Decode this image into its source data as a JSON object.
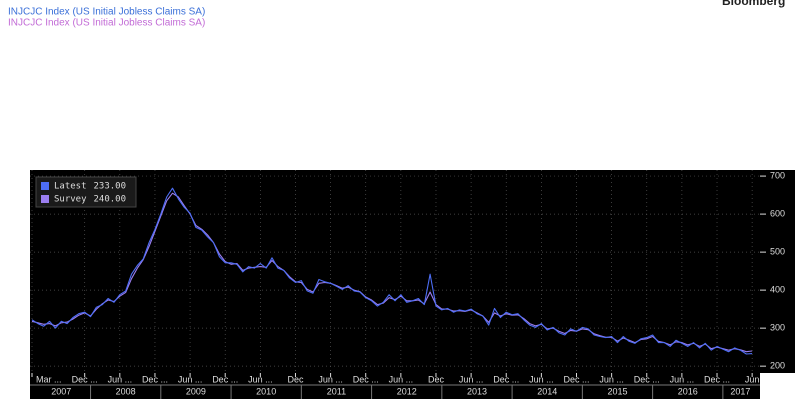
{
  "chart_data": {
    "type": "line",
    "title_lines": [
      {
        "text": "INJCJC Index (US Initial Jobless Claims SA)",
        "color": "#3a6fd8"
      },
      {
        "text": "INJCJC Index (US Initial Jobless Claims SA)",
        "color": "#c26bd6"
      }
    ],
    "source": "Bloomberg",
    "x": [
      "2007-03",
      "2007-04",
      "2007-05",
      "2007-06",
      "2007-07",
      "2007-08",
      "2007-09",
      "2007-10",
      "2007-11",
      "2007-12",
      "2008-01",
      "2008-02",
      "2008-03",
      "2008-04",
      "2008-05",
      "2008-06",
      "2008-07",
      "2008-08",
      "2008-09",
      "2008-10",
      "2008-11",
      "2008-12",
      "2009-01",
      "2009-02",
      "2009-03",
      "2009-04",
      "2009-05",
      "2009-06",
      "2009-07",
      "2009-08",
      "2009-09",
      "2009-10",
      "2009-11",
      "2009-12",
      "2010-01",
      "2010-02",
      "2010-03",
      "2010-04",
      "2010-05",
      "2010-06",
      "2010-07",
      "2010-08",
      "2010-09",
      "2010-10",
      "2010-11",
      "2010-12",
      "2011-01",
      "2011-02",
      "2011-03",
      "2011-04",
      "2011-05",
      "2011-06",
      "2011-07",
      "2011-08",
      "2011-09",
      "2011-10",
      "2011-11",
      "2011-12",
      "2012-01",
      "2012-02",
      "2012-03",
      "2012-04",
      "2012-05",
      "2012-06",
      "2012-07",
      "2012-08",
      "2012-09",
      "2012-10",
      "2012-11",
      "2012-12",
      "2013-01",
      "2013-02",
      "2013-03",
      "2013-04",
      "2013-05",
      "2013-06",
      "2013-07",
      "2013-08",
      "2013-09",
      "2013-10",
      "2013-11",
      "2013-12",
      "2014-01",
      "2014-02",
      "2014-03",
      "2014-04",
      "2014-05",
      "2014-06",
      "2014-07",
      "2014-08",
      "2014-09",
      "2014-10",
      "2014-11",
      "2014-12",
      "2015-01",
      "2015-02",
      "2015-03",
      "2015-04",
      "2015-05",
      "2015-06",
      "2015-07",
      "2015-08",
      "2015-09",
      "2015-10",
      "2015-11",
      "2015-12",
      "2016-01",
      "2016-02",
      "2016-03",
      "2016-04",
      "2016-05",
      "2016-06",
      "2016-07",
      "2016-08",
      "2016-09",
      "2016-10",
      "2016-11",
      "2016-12",
      "2017-01",
      "2017-02",
      "2017-03",
      "2017-04",
      "2017-05",
      "2017-06"
    ],
    "series": [
      {
        "name": "Latest",
        "color": "#4d6ef5",
        "last": {
          "value": 233,
          "label": "233.00"
        },
        "values": [
          322,
          312,
          305,
          318,
          300,
          318,
          312,
          328,
          338,
          342,
          330,
          355,
          362,
          378,
          368,
          388,
          398,
          442,
          465,
          482,
          525,
          560,
          600,
          645,
          668,
          640,
          618,
          602,
          565,
          558,
          540,
          525,
          488,
          472,
          472,
          468,
          448,
          462,
          458,
          470,
          458,
          485,
          458,
          452,
          432,
          420,
          425,
          398,
          392,
          428,
          422,
          418,
          410,
          402,
          412,
          398,
          395,
          380,
          372,
          358,
          368,
          388,
          372,
          388,
          368,
          372,
          378,
          362,
          442,
          358,
          348,
          352,
          342,
          348,
          345,
          350,
          338,
          332,
          308,
          352,
          328,
          342,
          335,
          338,
          322,
          308,
          302,
          312,
          295,
          302,
          288,
          282,
          298,
          292,
          302,
          298,
          282,
          278,
          275,
          278,
          262,
          278,
          265,
          260,
          272,
          275,
          282,
          262,
          262,
          252,
          268,
          260,
          252,
          262,
          248,
          260,
          242,
          252,
          245,
          238,
          248,
          242,
          232,
          233
        ]
      },
      {
        "name": "Survey",
        "color": "#9b7ef0",
        "last": {
          "value": 240,
          "label": "240.00"
        },
        "values": [
          318,
          314,
          310,
          312,
          306,
          314,
          316,
          324,
          334,
          340,
          332,
          350,
          364,
          374,
          370,
          384,
          394,
          430,
          458,
          480,
          515,
          555,
          595,
          635,
          655,
          645,
          622,
          600,
          570,
          560,
          545,
          525,
          495,
          475,
          468,
          470,
          452,
          458,
          460,
          462,
          460,
          478,
          462,
          452,
          435,
          422,
          420,
          402,
          395,
          418,
          420,
          418,
          412,
          405,
          408,
          400,
          396,
          382,
          374,
          362,
          366,
          380,
          375,
          384,
          372,
          372,
          374,
          364,
          395,
          362,
          350,
          350,
          345,
          346,
          344,
          348,
          340,
          332,
          315,
          340,
          332,
          338,
          334,
          335,
          325,
          312,
          306,
          310,
          298,
          300,
          292,
          286,
          294,
          292,
          298,
          296,
          285,
          280,
          276,
          276,
          266,
          274,
          268,
          262,
          270,
          272,
          278,
          265,
          262,
          256,
          264,
          262,
          256,
          260,
          252,
          258,
          246,
          250,
          246,
          242,
          246,
          243,
          238,
          240
        ]
      }
    ],
    "xlim": [
      "2007-03",
      "2017-07"
    ],
    "xticks": [
      {
        "value": "2007-03",
        "label": "Mar ..."
      },
      {
        "value": "2007-12",
        "label": "Dec ..."
      },
      {
        "value": "2008-06",
        "label": "Jun ..."
      },
      {
        "value": "2008-12",
        "label": "Dec ..."
      },
      {
        "value": "2009-06",
        "label": "Jun ..."
      },
      {
        "value": "2009-12",
        "label": "Dec ..."
      },
      {
        "value": "2010-06",
        "label": "Jun ..."
      },
      {
        "value": "2010-12",
        "label": "Dec"
      },
      {
        "value": "2011-06",
        "label": "Jun ..."
      },
      {
        "value": "2011-12",
        "label": "Dec ..."
      },
      {
        "value": "2012-06",
        "label": "Jun ..."
      },
      {
        "value": "2012-12",
        "label": "Dec"
      },
      {
        "value": "2013-06",
        "label": "Jun ..."
      },
      {
        "value": "2013-12",
        "label": "Dec ..."
      },
      {
        "value": "2014-06",
        "label": "Jun ..."
      },
      {
        "value": "2014-12",
        "label": "Dec ..."
      },
      {
        "value": "2015-06",
        "label": "Jun ..."
      },
      {
        "value": "2015-12",
        "label": "Dec ..."
      },
      {
        "value": "2016-06",
        "label": "Jun ..."
      },
      {
        "value": "2016-12",
        "label": "Dec ..."
      },
      {
        "value": "2017-06",
        "label": "Jun"
      }
    ],
    "years": [
      "2007",
      "2008",
      "2009",
      "2010",
      "2011",
      "2012",
      "2013",
      "2014",
      "2015",
      "2016",
      "2017"
    ],
    "ylim": [
      182,
      716
    ],
    "yticks": [
      200,
      300,
      400,
      500,
      600,
      700
    ],
    "grid": true
  }
}
